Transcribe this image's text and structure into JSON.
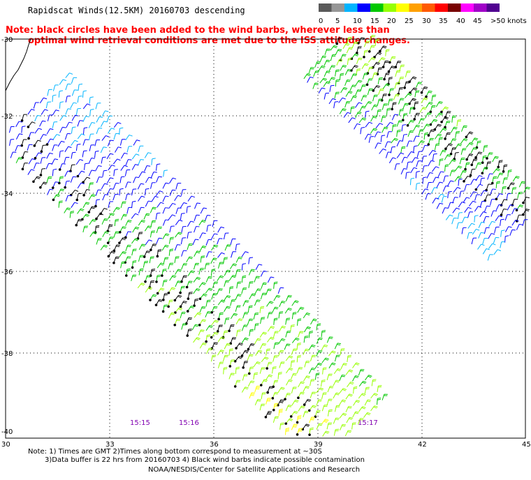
{
  "title": "Rapidscat Winds(12.5KM) 20160703 descending",
  "note_lines": [
    "Note: black circles have been added to the wind barbs, wherever less than",
    "optimal wind retrieval conditions are met due to the ISS attitude changes."
  ],
  "legend": {
    "colors": [
      "#5a5a5a",
      "#969696",
      "#00b4ff",
      "#0000ff",
      "#00c800",
      "#96ff00",
      "#ffff00",
      "#ffa000",
      "#ff5a00",
      "#ff0000",
      "#780000",
      "#ff00ff",
      "#a000c8",
      "#500090"
    ],
    "labels": [
      "0",
      "5",
      "10",
      "15",
      "20",
      "25",
      "30",
      "35",
      "40",
      "45",
      ">50 knots"
    ]
  },
  "axes": {
    "lon_labels": [
      "30",
      "33",
      "36",
      "39",
      "42",
      "45"
    ],
    "lat_labels": [
      "-30",
      "-32",
      "-34",
      "-36",
      "-38",
      "-40"
    ]
  },
  "time_labels": [
    "15:15",
    "15:16",
    "15:17"
  ],
  "footer": {
    "line1": "Note: 1) Times are GMT 2)Times along bottom correspond to measurement at ~30S",
    "line2": "3)Data buffer is 22 hrs from 20160703 4) Black wind barbs indicate possible contamination",
    "line3": "NOAA/NESDIS/Center for Satellite Applications and Research"
  }
}
